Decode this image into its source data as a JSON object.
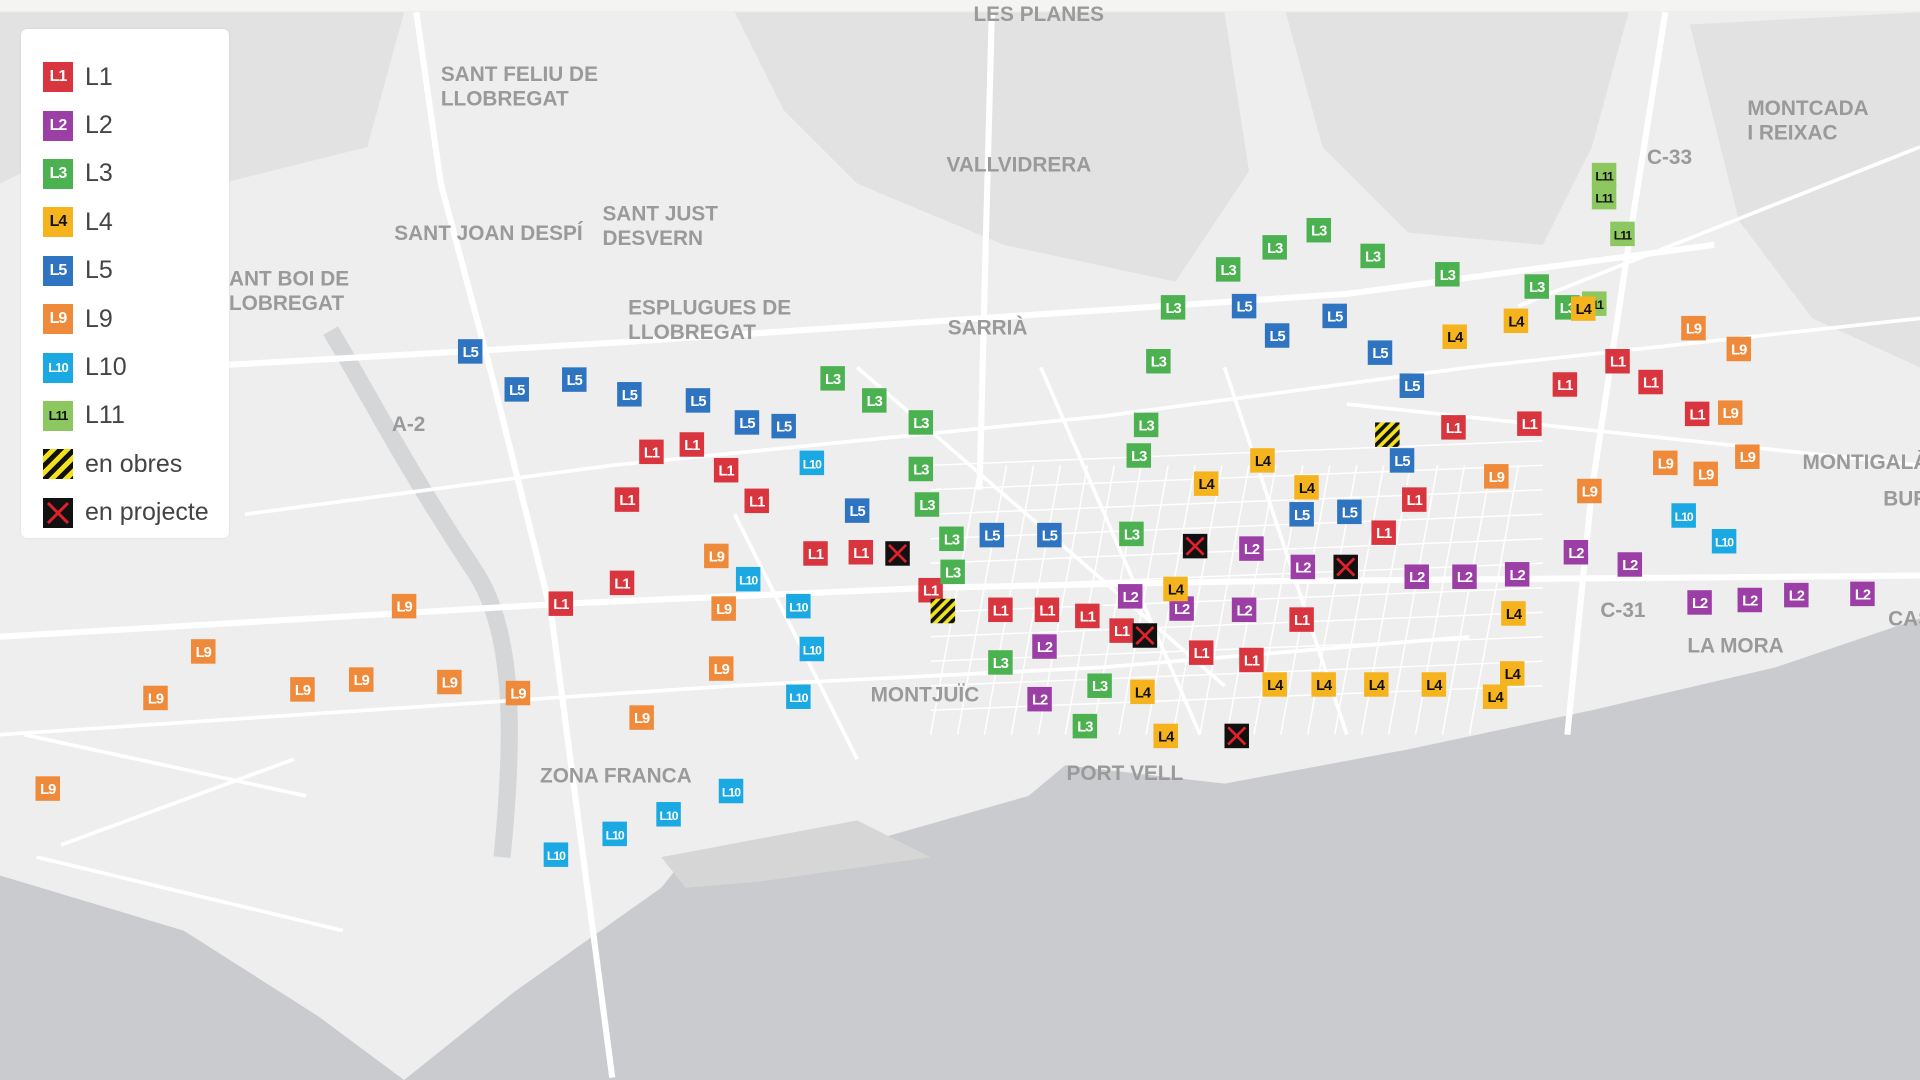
{
  "legend": {
    "items": [
      {
        "code": "L1",
        "label": "L1",
        "color": "#d9353f",
        "text_color": "#ffffff",
        "type": "line"
      },
      {
        "code": "L2",
        "label": "L2",
        "color": "#9b3fa6",
        "text_color": "#ffffff",
        "type": "line"
      },
      {
        "code": "L3",
        "label": "L3",
        "color": "#4cb150",
        "text_color": "#ffffff",
        "type": "line"
      },
      {
        "code": "L4",
        "label": "L4",
        "color": "#f5b41d",
        "text_color": "#111111",
        "type": "line"
      },
      {
        "code": "L5",
        "label": "L5",
        "color": "#2f74c0",
        "text_color": "#ffffff",
        "type": "line"
      },
      {
        "code": "L9",
        "label": "L9",
        "color": "#ee8a3a",
        "text_color": "#ffffff",
        "type": "line"
      },
      {
        "code": "L10",
        "label": "L10",
        "color": "#1aa9e3",
        "text_color": "#ffffff",
        "type": "line"
      },
      {
        "code": "L11",
        "label": "L11",
        "color": "#8cc760",
        "text_color": "#111111",
        "type": "line"
      },
      {
        "code": "obres",
        "label": "en obres",
        "color": "#f2e21a",
        "text_color": "#111111",
        "type": "works"
      },
      {
        "code": "projecte",
        "label": "en projecte",
        "color": "#111111",
        "text_color": "#e0202a",
        "type": "planned"
      }
    ]
  },
  "places": [
    "LES PLANES",
    "SANT FELIU DE",
    "LLOBREGAT",
    "VALLVIDRERA",
    "SANT JUST",
    "DESVERN",
    "SANT JOAN DESPÍ",
    "ANT BOI DE",
    "LOBREGAT",
    "ESPLUGUES DE",
    "LLOBREGAT",
    "SARRIÀ",
    "A-2",
    "MONTCADA",
    "I REIXAC",
    "C-33",
    "MONTIGALÀ",
    "BUF",
    "C-31",
    "LA MORA",
    "CAS",
    "MONTJUÏC",
    "ZONA FRANCA",
    "PORT VELL"
  ],
  "colors": {
    "land": "#eeeeee",
    "hills": "#e2e2e2",
    "roads": "#ffffff",
    "sea": "#c9cbce"
  }
}
